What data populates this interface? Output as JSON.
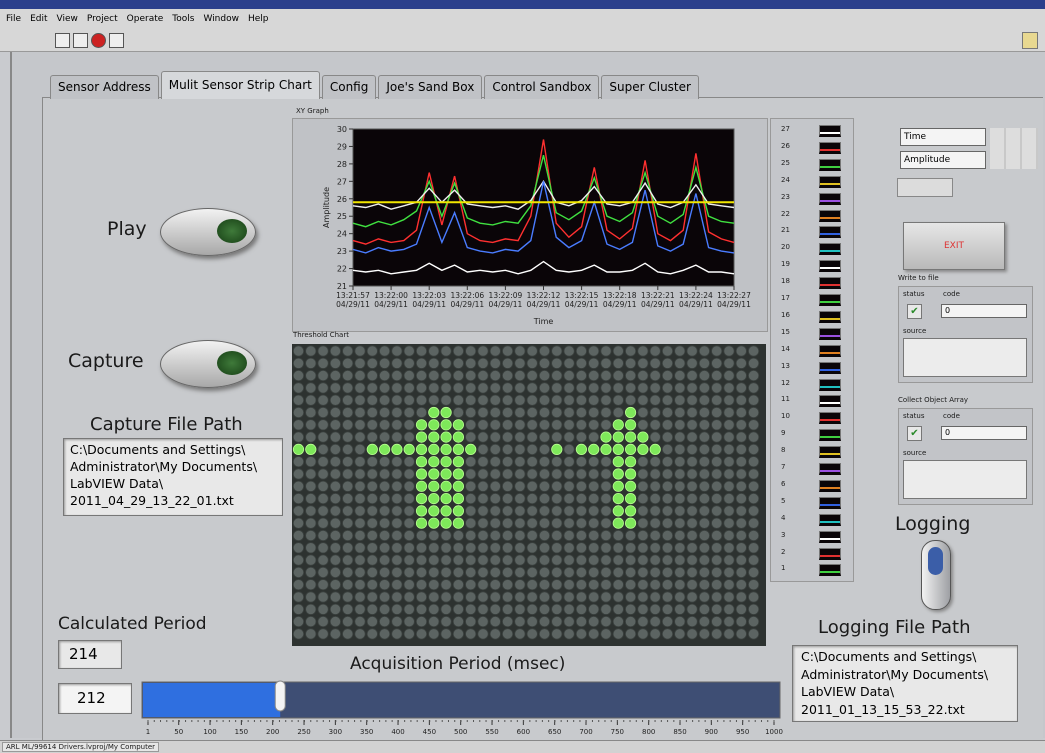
{
  "menu": [
    "File",
    "Edit",
    "View",
    "Project",
    "Operate",
    "Tools",
    "Window",
    "Help"
  ],
  "tabs": [
    "Sensor Address",
    "Mulit Sensor Strip Chart",
    "Config",
    "Joe's Sand Box",
    "Control Sandbox",
    "Super Cluster"
  ],
  "active_tab": 1,
  "play_label": "Play",
  "capture_label": "Capture",
  "capture_file_path": {
    "label": "Capture File Path",
    "lines": [
      "C:\\Documents and Settings\\",
      "Administrator\\My Documents\\",
      "LabVIEW Data\\",
      "2011_04_29_13_22_01.txt"
    ]
  },
  "calculated_period": {
    "label": "Calculated Period",
    "value": 214
  },
  "acquisition_period": {
    "label": "Acquisition Period (msec)",
    "value": 212,
    "xlim": [
      1,
      1000
    ],
    "xticks": [
      1,
      50,
      100,
      150,
      200,
      250,
      300,
      350,
      400,
      450,
      500,
      550,
      600,
      650,
      700,
      750,
      800,
      850,
      900,
      950,
      1000
    ]
  },
  "chart_data": {
    "type": "line",
    "title": "XY Graph",
    "x_label": "Time",
    "y_label": "Amplitude",
    "xlim": [
      0,
      30
    ],
    "xticks": [
      {
        "value": 0,
        "label": "13:21:57\n04/29/11"
      },
      {
        "value": 3,
        "label": "13:22:00\n04/29/11"
      },
      {
        "value": 6,
        "label": "13:22:03\n04/29/11"
      },
      {
        "value": 9,
        "label": "13:22:06\n04/29/11"
      },
      {
        "value": 12,
        "label": "13:22:09\n04/29/11"
      },
      {
        "value": 15,
        "label": "13:22:12\n04/29/11"
      },
      {
        "value": 18,
        "label": "13:22:15\n04/29/11"
      },
      {
        "value": 21,
        "label": "13:22:18\n04/29/11"
      },
      {
        "value": 24,
        "label": "13:22:21\n04/29/11"
      },
      {
        "value": 27,
        "label": "13:22:24\n04/29/11"
      },
      {
        "value": 30,
        "label": "13:22:27\n04/29/11"
      }
    ],
    "ylim": [
      21,
      30
    ],
    "yticks": [
      21,
      22,
      23,
      24,
      25,
      26,
      27,
      28,
      29,
      30
    ],
    "threshold": 25.8,
    "threshold_color": "#f2e600",
    "x": [
      0,
      1,
      2,
      3,
      4,
      5,
      6,
      7,
      8,
      9,
      10,
      11,
      12,
      13,
      14,
      15,
      16,
      17,
      18,
      19,
      20,
      21,
      22,
      23,
      24,
      25,
      26,
      27,
      28,
      29,
      30
    ],
    "series": [
      {
        "color": "#ff3030",
        "values": [
          23.6,
          23.4,
          23.7,
          23.5,
          23.6,
          24.2,
          27.5,
          24.5,
          27.3,
          24.0,
          23.6,
          23.5,
          23.7,
          23.6,
          25.0,
          29.4,
          24.6,
          23.8,
          24.4,
          27.8,
          24.2,
          23.7,
          24.3,
          28.2,
          24.0,
          23.6,
          24.2,
          28.6,
          24.1,
          23.7,
          23.5
        ]
      },
      {
        "color": "#40e040",
        "values": [
          24.6,
          24.4,
          24.7,
          24.5,
          24.8,
          25.3,
          27.0,
          25.0,
          26.9,
          24.9,
          24.6,
          24.5,
          24.7,
          24.6,
          25.6,
          28.5,
          25.2,
          24.8,
          25.3,
          27.2,
          25.0,
          24.7,
          25.2,
          27.5,
          25.0,
          24.6,
          25.1,
          27.8,
          25.0,
          24.7,
          24.6
        ]
      },
      {
        "color": "#f0f0f0",
        "values": [
          25.6,
          25.5,
          25.7,
          25.4,
          25.6,
          25.8,
          26.6,
          25.8,
          26.5,
          25.7,
          25.6,
          25.5,
          25.6,
          25.4,
          25.9,
          27.0,
          25.8,
          25.6,
          25.9,
          26.7,
          25.7,
          25.6,
          25.8,
          26.9,
          25.7,
          25.5,
          25.8,
          26.8,
          25.7,
          25.6,
          25.5
        ]
      },
      {
        "color": "#4a7cff",
        "values": [
          23.1,
          22.9,
          23.2,
          23.0,
          23.1,
          23.4,
          25.5,
          23.5,
          25.2,
          23.2,
          23.0,
          22.9,
          23.1,
          23.0,
          23.6,
          27.0,
          23.8,
          23.2,
          23.6,
          25.8,
          23.4,
          23.1,
          23.5,
          26.5,
          23.3,
          23.0,
          23.4,
          26.3,
          23.2,
          23.0,
          22.9
        ]
      },
      {
        "color": "#ffffff",
        "values": [
          21.9,
          21.8,
          21.9,
          21.7,
          21.8,
          21.9,
          22.3,
          21.9,
          22.2,
          21.8,
          21.9,
          21.8,
          21.9,
          21.7,
          21.9,
          22.4,
          21.9,
          21.8,
          21.9,
          22.2,
          21.8,
          21.8,
          21.9,
          22.3,
          21.8,
          21.7,
          21.9,
          22.2,
          21.8,
          21.8,
          21.7
        ]
      }
    ]
  },
  "threshold_chart": {
    "title": "Threshold Chart"
  },
  "plot_legend": [
    "27",
    "26",
    "25",
    "24",
    "23",
    "22",
    "21",
    "20",
    "19",
    "18",
    "17",
    "16",
    "15",
    "14",
    "13",
    "12",
    "11",
    "10",
    "9",
    "8",
    "7",
    "6",
    "5",
    "4",
    "3",
    "2",
    "1"
  ],
  "right_panel": {
    "time_field": "Time",
    "amplitude_field": "Amplitude",
    "exit_button": "EXIT",
    "write_to_file": {
      "label": "Write to file",
      "status": "status",
      "code_label": "code",
      "code": 0,
      "source": "source"
    },
    "collect_object_array": {
      "label": "Collect Object Array",
      "status": "status",
      "code_label": "code",
      "code": 0,
      "source": "source"
    },
    "logging_label": "Logging",
    "logging_file_path": {
      "label": "Logging File Path",
      "lines": [
        "C:\\Documents and Settings\\",
        "Administrator\\My Documents\\",
        "LabVIEW Data\\",
        "2011_01_13_15_53_22.txt"
      ]
    }
  },
  "status_bar": "ARL ML/99614 Drivers.lvproj/My Computer"
}
